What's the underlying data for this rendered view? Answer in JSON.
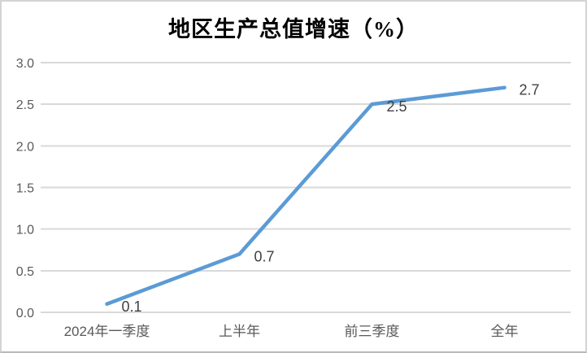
{
  "title": "地区生产总值增速（%）",
  "colors": {
    "line": "#5B9BD5",
    "gridline": "#D9D9D9",
    "axis_label": "#595959",
    "data_label": "#404040",
    "title_text": "#000000",
    "background": "#FFFFFF",
    "frame_border": "#D4D4D4"
  },
  "chart_data": {
    "type": "line",
    "title": "地区生产总值增速（%）",
    "categories": [
      "2024年一季度",
      "上半年",
      "前三季度",
      "全年"
    ],
    "values": [
      0.1,
      0.7,
      2.5,
      2.7
    ],
    "data_labels": [
      "0.1",
      "0.7",
      "2.5",
      "2.7"
    ],
    "xlabel": "",
    "ylabel": "",
    "ylim": [
      0.0,
      3.0
    ],
    "ytick_step": 0.5,
    "ytick_labels": [
      "0.0",
      "0.5",
      "1.0",
      "1.5",
      "2.0",
      "2.5",
      "3.0"
    ],
    "grid": "horizontal",
    "legend": "none",
    "markers": "none"
  }
}
